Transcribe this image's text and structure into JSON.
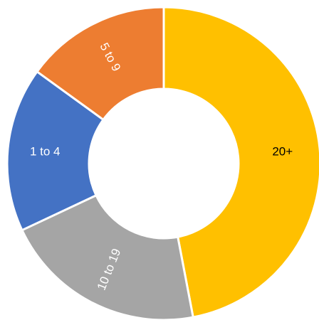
{
  "chart_data": {
    "type": "donut",
    "categories": [
      "20+",
      "10 to 19",
      "1 to 4",
      "5 to 9"
    ],
    "values": [
      47,
      21,
      17,
      15
    ],
    "colors": [
      "#ffc000",
      "#a5a5a5",
      "#4472c4",
      "#ed7d31"
    ]
  }
}
